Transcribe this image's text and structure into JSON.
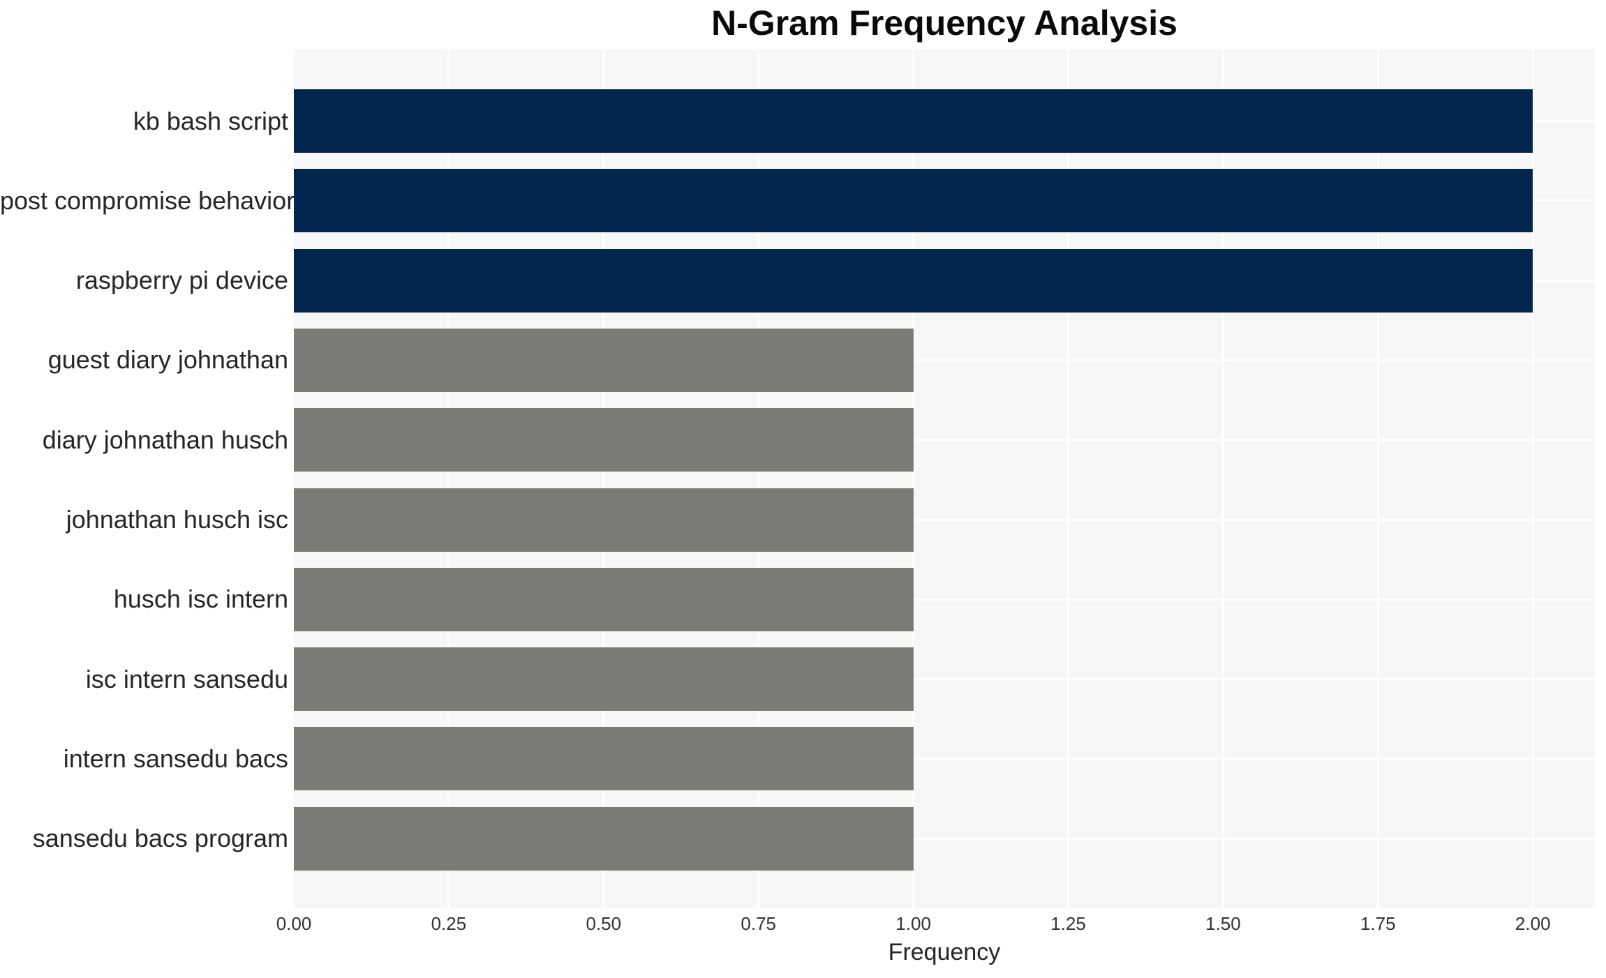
{
  "title": "N-Gram Frequency Analysis",
  "chart_data": {
    "type": "bar",
    "orientation": "horizontal",
    "title": "N-Gram Frequency Analysis",
    "xlabel": "Frequency",
    "ylabel": "",
    "categories": [
      "kb bash script",
      "post compromise behavior",
      "raspberry pi device",
      "guest diary johnathan",
      "diary johnathan husch",
      "johnathan husch isc",
      "husch isc intern",
      "isc intern sansedu",
      "intern sansedu bacs",
      "sansedu bacs program"
    ],
    "values": [
      2,
      2,
      2,
      1,
      1,
      1,
      1,
      1,
      1,
      1
    ],
    "x_tick_labels": [
      "0.00",
      "0.25",
      "0.50",
      "0.75",
      "1.00",
      "1.25",
      "1.50",
      "1.75",
      "2.00"
    ],
    "xlim": [
      0,
      2.1
    ],
    "grid": true,
    "legend": false,
    "bar_colors": [
      "#02264E",
      "#02264E",
      "#02264E",
      "#7B7B78",
      "#7B7B78",
      "#7B7B78",
      "#7B7B78",
      "#7B7B78",
      "#7B7B78",
      "#7B7B78"
    ],
    "colors": {
      "high_freq_bar": "#02264E",
      "low_freq_bar": "#7B7B78",
      "plot_background": "#F7F7F7",
      "gridline": "#FFFFFF"
    }
  }
}
